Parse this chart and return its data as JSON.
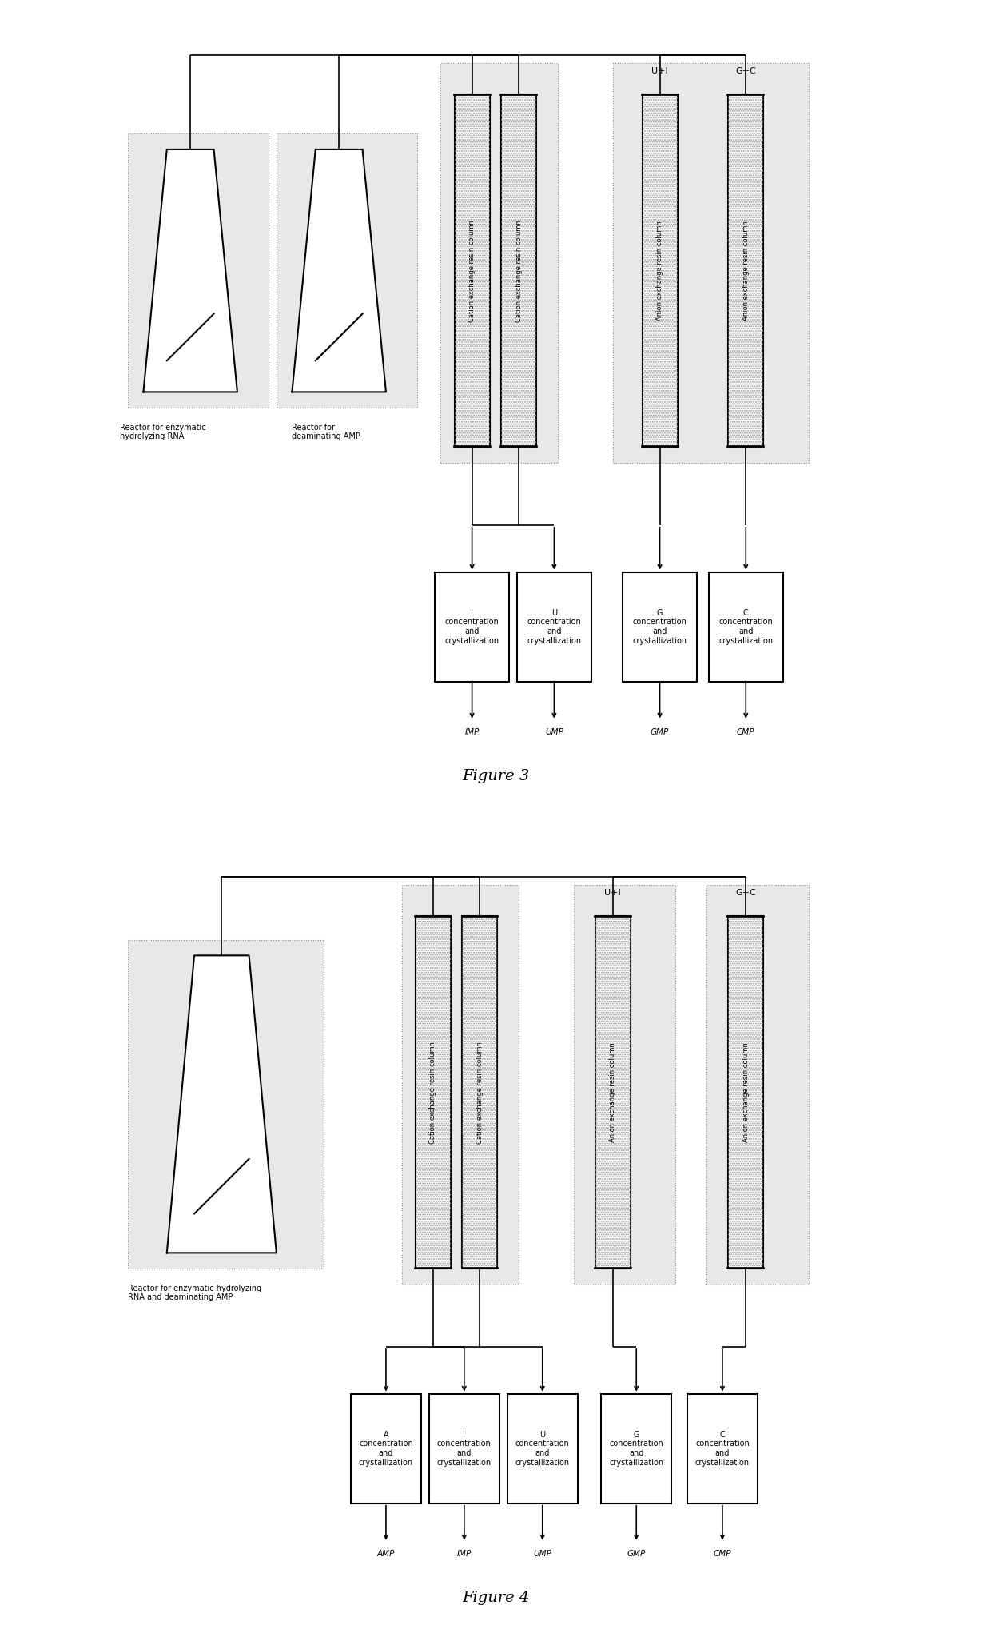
{
  "fig3_title": "Figure 3",
  "fig4_title": "Figure 4",
  "bg_color": "#ffffff",
  "text_color": "#000000",
  "line_color": "#000000",
  "reactor1_label": "Reactor for enzymatic\nhydrolyzing RNA",
  "reactor2_label": "Reactor for\ndeaminating AMP",
  "reactor_combined_label": "Reactor for enzymatic hydrolyzing\nRNA and deaminating AMP",
  "cation_col_label": "Cation exchange resin column",
  "anion_col_label": "Anion exchange resin column",
  "ui_label": "U+I",
  "gc_label": "G+C",
  "fig3_box_labels": [
    "I",
    "U",
    "G",
    "C"
  ],
  "fig4_box_labels": [
    "A",
    "I",
    "U",
    "G",
    "C"
  ],
  "box_sub_label": "concentration\nand\ncrystallization",
  "fig3_outputs": [
    "IMP",
    "UMP",
    "GMP",
    "CMP"
  ],
  "fig4_outputs": [
    "AMP",
    "IMP",
    "UMP",
    "GMP",
    "CMP"
  ]
}
